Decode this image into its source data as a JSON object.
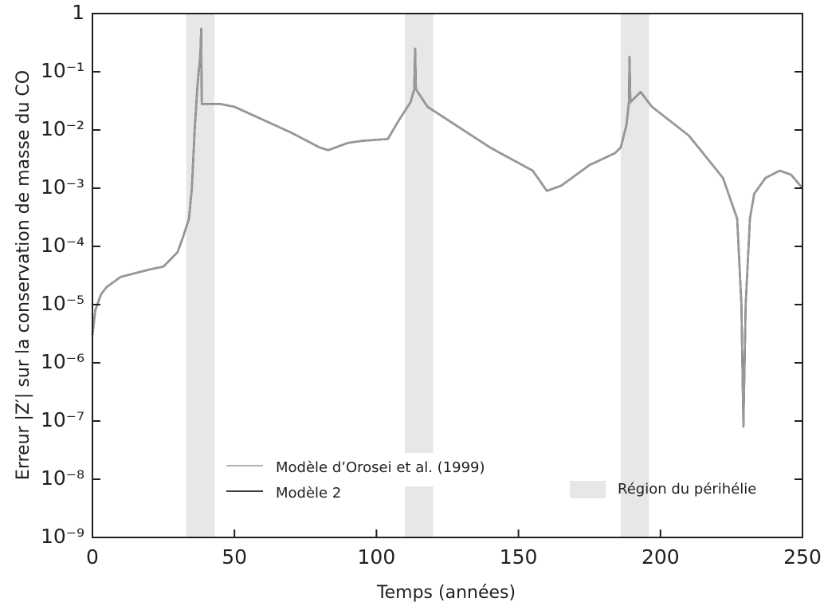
{
  "chart_data": {
    "type": "line",
    "xlabel": "Temps (années)",
    "ylabel": "Erreur |Z′| sur la conservation de masse du CO",
    "ylog": true,
    "xlim": [
      0,
      250
    ],
    "xticks": [
      0,
      50,
      100,
      150,
      200,
      250
    ],
    "ylim": [
      1e-09,
      1
    ],
    "yticks": [
      {
        "value": 1e-09,
        "label": "10⁻⁹"
      },
      {
        "value": 1e-08,
        "label": "10⁻⁸"
      },
      {
        "value": 1e-07,
        "label": "10⁻⁷"
      },
      {
        "value": 1e-06,
        "label": "10⁻⁶"
      },
      {
        "value": 1e-05,
        "label": "10⁻⁵"
      },
      {
        "value": 0.0001,
        "label": "10⁻⁴"
      },
      {
        "value": 0.001,
        "label": "10⁻³"
      },
      {
        "value": 0.01,
        "label": "10⁻²"
      },
      {
        "value": 0.1,
        "label": "10⁻¹"
      },
      1
    ],
    "regions": {
      "name": "Région du périhélie",
      "color": "#e6e7e8",
      "spans": [
        [
          33,
          43
        ],
        [
          110,
          120
        ],
        [
          186,
          196
        ]
      ]
    },
    "x": [
      0,
      1,
      3,
      5,
      10,
      20,
      25,
      30,
      32,
      34,
      35,
      36,
      37,
      38,
      38.3,
      38.5,
      45,
      50,
      60,
      70,
      80,
      83,
      90,
      95,
      104,
      108,
      112,
      113.3,
      113.6,
      113.9,
      118,
      125,
      140,
      155,
      160,
      165,
      175,
      184,
      186,
      188,
      188.9,
      189.1,
      189.4,
      193,
      197,
      210,
      222,
      227,
      228.5,
      229.2,
      230,
      231.5,
      233,
      237,
      242,
      246,
      250
    ],
    "series": [
      {
        "name": "Modèle 2",
        "color": "#000000",
        "values": [
          3e-06,
          8e-06,
          1.5e-05,
          2e-05,
          3e-05,
          4e-05,
          4.5e-05,
          8e-05,
          0.00015,
          0.0003,
          0.001,
          0.01,
          0.06,
          0.2,
          0.55,
          0.028,
          0.028,
          0.025,
          0.015,
          0.009,
          0.005,
          0.0045,
          0.006,
          0.0065,
          0.007,
          0.015,
          0.03,
          0.05,
          0.25,
          0.05,
          0.025,
          0.015,
          0.005,
          0.002,
          0.0009,
          0.0011,
          0.0025,
          0.004,
          0.005,
          0.012,
          0.03,
          0.18,
          0.03,
          0.045,
          0.025,
          0.008,
          0.0015,
          0.0003,
          1e-05,
          8e-08,
          1e-05,
          0.0003,
          0.0008,
          0.0015,
          0.002,
          0.0017,
          0.001
        ]
      },
      {
        "name": "Modèle  d’Orosei  et al. (1999)",
        "color": "#999999",
        "values": [
          3e-06,
          8e-06,
          1.5e-05,
          2e-05,
          3e-05,
          4e-05,
          4.5e-05,
          8e-05,
          0.00015,
          0.0003,
          0.001,
          0.01,
          0.06,
          0.2,
          0.55,
          0.028,
          0.028,
          0.025,
          0.015,
          0.009,
          0.005,
          0.0045,
          0.006,
          0.0065,
          0.007,
          0.015,
          0.03,
          0.05,
          0.25,
          0.05,
          0.025,
          0.015,
          0.005,
          0.002,
          0.0009,
          0.0011,
          0.0025,
          0.004,
          0.005,
          0.012,
          0.03,
          0.18,
          0.03,
          0.045,
          0.025,
          0.008,
          0.0015,
          0.0003,
          1e-05,
          8e-08,
          1e-05,
          0.0003,
          0.0008,
          0.0015,
          0.002,
          0.0017,
          0.001
        ]
      }
    ]
  }
}
